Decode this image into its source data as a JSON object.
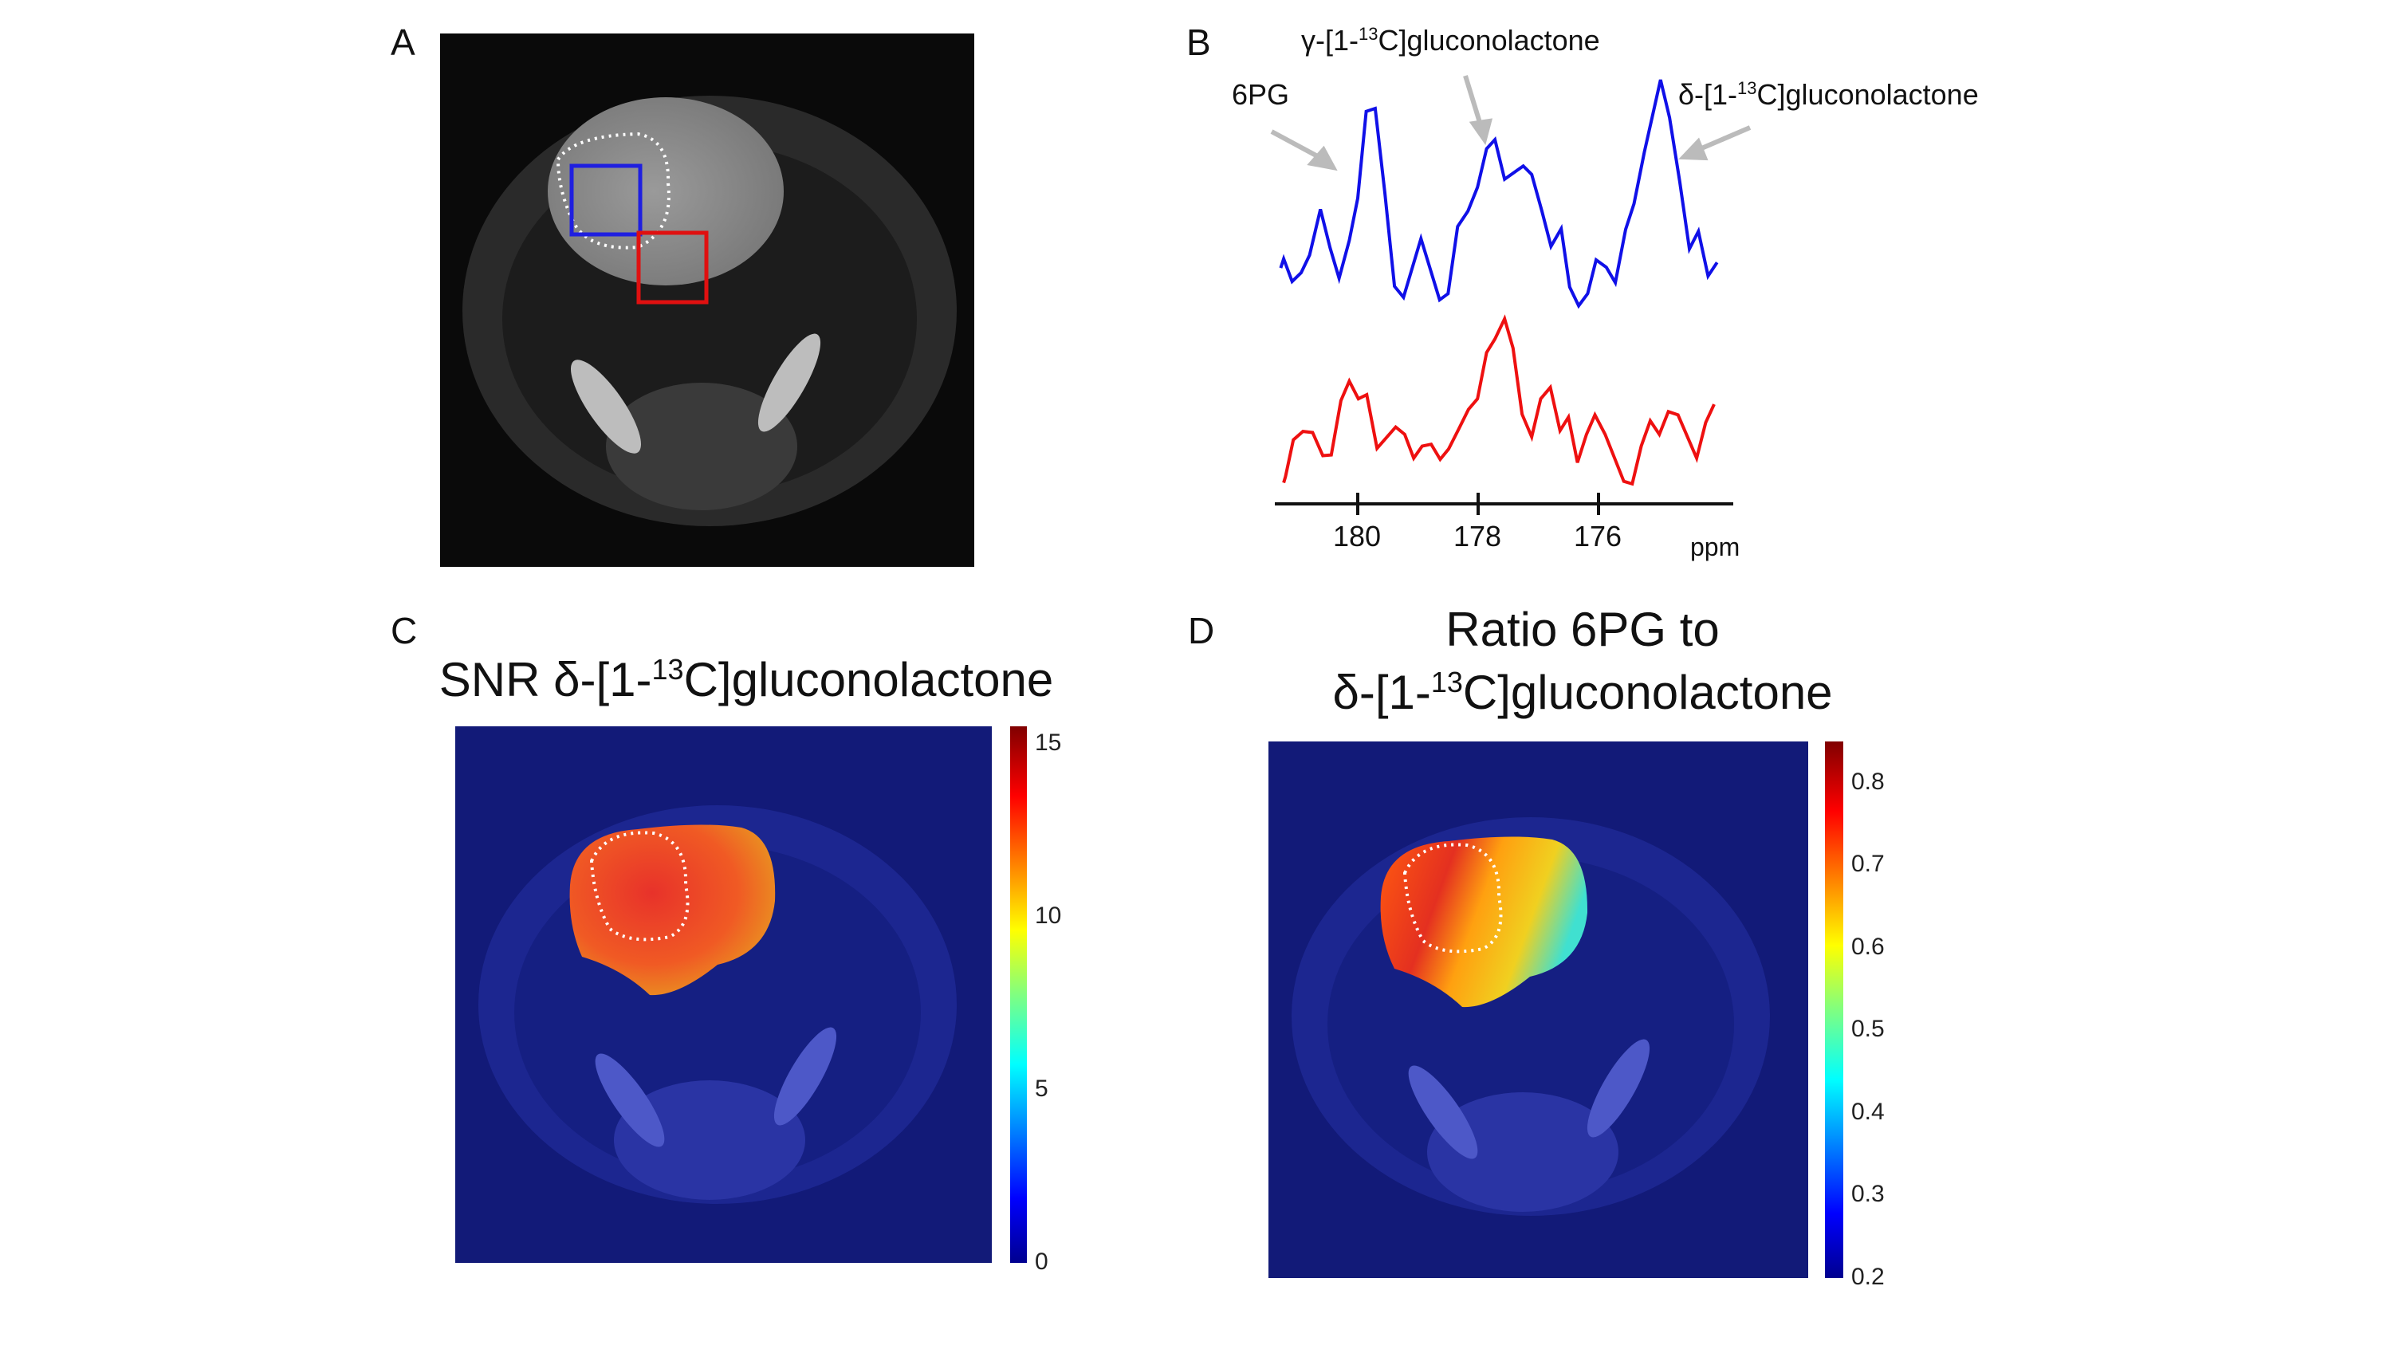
{
  "panels": {
    "a": {
      "label": "A",
      "roi_colors": {
        "tumor_box": "#1f1fe0",
        "contralateral_box": "#e01010"
      }
    },
    "b": {
      "label": "B"
    },
    "c": {
      "label": "C",
      "title_prefix": "SNR δ-[1-",
      "title_sup": "13",
      "title_suffix": "C]gluconolactone",
      "colorbar": {
        "min": 0,
        "max": 15.5,
        "ticks": [
          "15",
          "10",
          "5",
          "0"
        ],
        "tick_values": [
          15,
          10,
          5,
          0
        ],
        "colormap": "jet"
      }
    },
    "d": {
      "label": "D",
      "title_line1": "Ratio 6PG to",
      "title_prefix": "δ-[1-",
      "title_sup": "13",
      "title_suffix": "C]gluconolactone",
      "colorbar": {
        "min": 0.2,
        "max": 0.85,
        "ticks": [
          "0.8",
          "0.7",
          "0.6",
          "0.5",
          "0.4",
          "0.3",
          "0.2"
        ],
        "tick_values": [
          0.8,
          0.7,
          0.6,
          0.5,
          0.4,
          0.3,
          0.2
        ],
        "colormap": "jet"
      }
    }
  },
  "chart_data": {
    "type": "line",
    "xlabel": "ppm",
    "xlim": [
      181.4,
      173.8
    ],
    "x_reversed": true,
    "x_ticks": [
      180,
      178,
      176
    ],
    "x_tick_labels": [
      "180",
      "178",
      "176"
    ],
    "annotations": [
      {
        "text": "6PG"
      },
      {
        "text_prefix": "γ-[1-",
        "sup": "13",
        "text_suffix": "C]gluconolactone"
      },
      {
        "text_prefix": "δ-[1-",
        "sup": "13",
        "text_suffix": "C]gluconolactone"
      }
    ],
    "series": [
      {
        "color": "#1010e8",
        "x": [
          181.28,
          181.23,
          181.09,
          180.94,
          180.8,
          180.62,
          180.46,
          180.31,
          180.14,
          180.0,
          179.86,
          179.71,
          179.55,
          179.39,
          179.24,
          178.95,
          178.64,
          178.5,
          178.34,
          178.17,
          178.01,
          177.86,
          177.72,
          177.56,
          177.25,
          177.11,
          176.94,
          176.79,
          176.62,
          176.48,
          176.33,
          176.18,
          176.04,
          175.87,
          175.72,
          175.55,
          175.41,
          175.24,
          174.97,
          174.82,
          174.65,
          174.49,
          174.34,
          174.18,
          174.03
        ],
        "y": [
          1.65,
          1.9,
          1.28,
          1.52,
          2.0,
          3.25,
          2.2,
          1.37,
          2.4,
          3.55,
          5.92,
          6.0,
          3.7,
          1.15,
          0.85,
          2.45,
          0.78,
          0.95,
          2.78,
          3.2,
          3.85,
          4.9,
          5.15,
          4.07,
          4.43,
          4.2,
          3.2,
          2.24,
          2.72,
          1.13,
          0.62,
          0.95,
          1.87,
          1.67,
          1.25,
          2.7,
          3.4,
          4.8,
          6.78,
          5.75,
          4.0,
          2.17,
          2.65,
          1.43,
          1.8
        ]
      },
      {
        "color": "#ee1010",
        "x": [
          181.23,
          181.2,
          181.07,
          180.91,
          180.75,
          180.58,
          180.44,
          180.28,
          180.14,
          179.99,
          179.85,
          179.68,
          179.37,
          179.22,
          179.07,
          178.93,
          178.78,
          178.63,
          178.49,
          178.32,
          178.16,
          178.01,
          177.86,
          177.72,
          177.56,
          177.42,
          177.27,
          177.11,
          176.96,
          176.8,
          176.64,
          176.5,
          176.35,
          176.2,
          176.06,
          175.89,
          175.58,
          175.44,
          175.29,
          175.14,
          174.99,
          174.84,
          174.68,
          174.37,
          174.22,
          174.08
        ],
        "y": [
          0.38,
          0.55,
          1.55,
          1.78,
          1.75,
          1.12,
          1.14,
          2.62,
          3.15,
          2.67,
          2.78,
          1.32,
          1.9,
          1.7,
          1.05,
          1.38,
          1.43,
          1.02,
          1.3,
          1.85,
          2.38,
          2.67,
          3.93,
          4.3,
          4.85,
          4.05,
          2.25,
          1.63,
          2.67,
          2.98,
          1.8,
          2.17,
          0.93,
          1.7,
          2.23,
          1.7,
          0.42,
          0.35,
          1.38,
          2.07,
          1.7,
          2.32,
          2.23,
          1.05,
          2.02,
          2.52
        ]
      }
    ]
  }
}
